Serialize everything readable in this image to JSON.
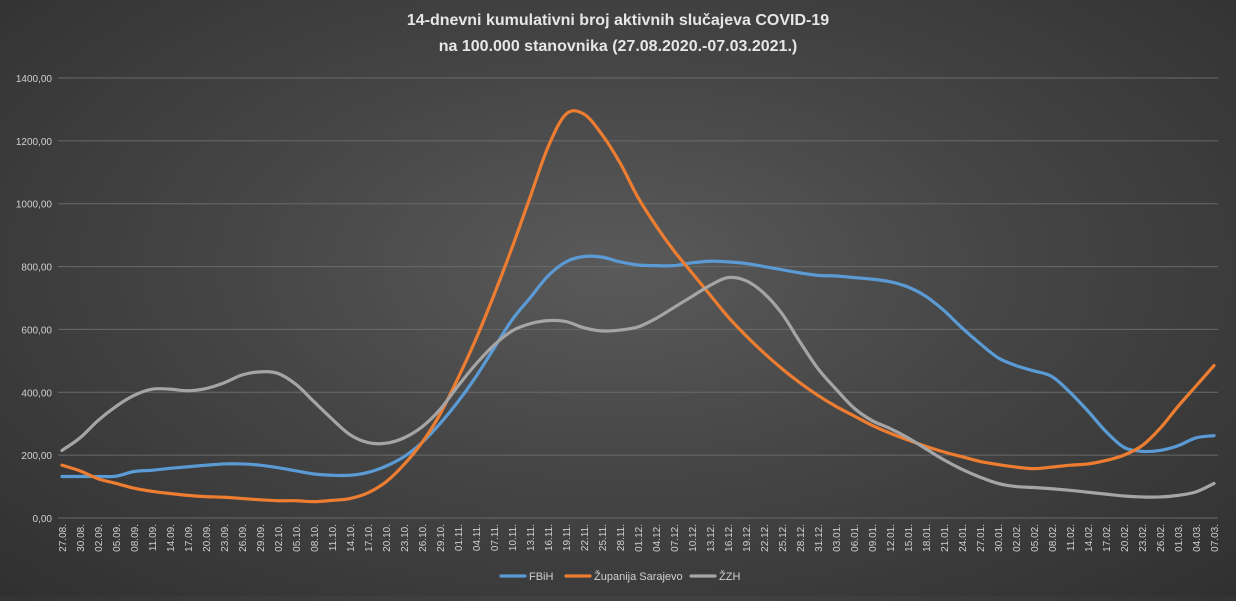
{
  "chart_data": {
    "type": "line",
    "title_line1": "14-dnevni  kumulativni  broj  aktivnih  slučajeva  COVID-19",
    "title_line2": "na  100.000  stanovnika  (27.08.2020.-07.03.2021.)",
    "ylim": [
      0,
      1400
    ],
    "yticks": [
      0,
      200,
      400,
      600,
      800,
      1000,
      1200,
      1400
    ],
    "ytick_labels": [
      "0,00",
      "200,00",
      "400,00",
      "600,00",
      "800,00",
      "1000,00",
      "1200,00",
      "1400,00"
    ],
    "grid": true,
    "legend_position": "bottom",
    "x": [
      "27.08.",
      "30.08.",
      "02.09.",
      "05.09.",
      "08.09.",
      "11.09.",
      "14.09.",
      "17.09.",
      "20.09.",
      "23.09.",
      "26.09.",
      "29.09.",
      "02.10.",
      "05.10.",
      "08.10.",
      "11.10.",
      "14.10.",
      "17.10.",
      "20.10.",
      "23.10.",
      "26.10.",
      "29.10.",
      "01.11.",
      "04.11.",
      "07.11.",
      "10.11.",
      "13.11.",
      "16.11.",
      "19.11.",
      "22.11.",
      "25.11.",
      "28.11.",
      "01.12.",
      "04.12.",
      "07.12.",
      "10.12.",
      "13.12.",
      "16.12.",
      "19.12.",
      "22.12.",
      "25.12.",
      "28.12.",
      "31.12.",
      "03.01.",
      "06.01.",
      "09.01.",
      "12.01.",
      "15.01.",
      "18.01.",
      "21.01.",
      "24.01.",
      "27.01.",
      "30.01.",
      "02.02.",
      "05.02.",
      "08.02.",
      "11.02.",
      "14.02.",
      "17.02.",
      "20.02.",
      "23.02.",
      "26.02.",
      "01.03.",
      "04.03.",
      "07.03."
    ],
    "series": [
      {
        "name": "FBiH",
        "color": "#5b9bd5",
        "values": [
          132,
          132,
          132,
          133,
          148,
          152,
          158,
          163,
          168,
          172,
          172,
          168,
          160,
          150,
          140,
          136,
          136,
          145,
          165,
          195,
          240,
          300,
          370,
          450,
          540,
          630,
          700,
          770,
          815,
          832,
          830,
          815,
          805,
          803,
          803,
          812,
          817,
          815,
          810,
          800,
          790,
          780,
          772,
          770,
          765,
          760,
          752,
          735,
          705,
          660,
          605,
          555,
          510,
          485,
          468,
          450,
          400,
          340,
          275,
          225,
          212,
          215,
          230,
          255,
          262
        ],
        "name_visible": true
      },
      {
        "name": "Županija Sarajevo",
        "color": "#ed7d31",
        "values": [
          168,
          150,
          125,
          110,
          95,
          85,
          78,
          72,
          68,
          66,
          62,
          58,
          55,
          55,
          52,
          56,
          62,
          80,
          115,
          170,
          240,
          330,
          445,
          570,
          710,
          860,
          1020,
          1180,
          1285,
          1285,
          1220,
          1130,
          1020,
          930,
          850,
          780,
          710,
          640,
          580,
          525,
          475,
          430,
          390,
          355,
          325,
          295,
          270,
          248,
          228,
          210,
          195,
          180,
          170,
          162,
          157,
          162,
          168,
          172,
          183,
          200,
          230,
          285,
          355,
          420,
          485
        ]
      },
      {
        "name": "ŽZH",
        "color": "#a5a5a5",
        "values": [
          215,
          255,
          310,
          355,
          390,
          410,
          410,
          405,
          412,
          430,
          455,
          465,
          460,
          425,
          370,
          315,
          265,
          240,
          238,
          255,
          290,
          345,
          420,
          490,
          550,
          595,
          618,
          628,
          625,
          605,
          595,
          598,
          608,
          635,
          670,
          705,
          740,
          765,
          755,
          715,
          650,
          560,
          475,
          410,
          350,
          310,
          285,
          255,
          220,
          185,
          155,
          130,
          110,
          100,
          97,
          93,
          88,
          82,
          76,
          70,
          67,
          67,
          72,
          83,
          110
        ]
      }
    ]
  }
}
